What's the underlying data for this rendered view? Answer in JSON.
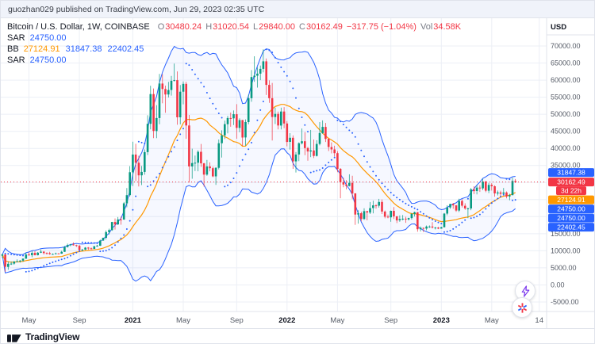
{
  "meta": {
    "publisher_line": "guozhan029 published on TradingView.com, Jun 29, 2023 02:35 UTC"
  },
  "legend": {
    "title": "Bitcoin / U.S. Dollar, 1W, COINBASE",
    "ohlc": [
      {
        "label": "O",
        "value": "30480.24"
      },
      {
        "label": "H",
        "value": "31020.54"
      },
      {
        "label": "L",
        "value": "29840.00"
      },
      {
        "label": "C",
        "value": "30162.49"
      }
    ],
    "change": "−317.75 (−1.04%)",
    "vol_label": "Vol",
    "vol_value": "34.58K",
    "indicators": [
      {
        "name": "SAR",
        "values": [
          {
            "text": "24750.00",
            "color": "#2962FF"
          }
        ]
      },
      {
        "name": "BB",
        "values": [
          {
            "text": "27124.91",
            "color": "#FF9800"
          },
          {
            "text": "31847.38",
            "color": "#2962FF"
          },
          {
            "text": "22402.45",
            "color": "#2962FF"
          }
        ]
      },
      {
        "name": "SAR",
        "values": [
          {
            "text": "24750.00",
            "color": "#2962FF"
          }
        ]
      }
    ]
  },
  "price_scale": {
    "currency": "USD",
    "max": 70000,
    "min": -5000,
    "step": 5000,
    "badges": [
      {
        "role": "bb-upper",
        "text": "31847.38",
        "price": 31847.38,
        "color": "#2962FF"
      },
      {
        "role": "last-price",
        "text": "30162.49",
        "price": 30162.49,
        "color": "#F23645"
      },
      {
        "role": "countdown",
        "text": "3d 22h",
        "price": null,
        "color": "#F23645"
      },
      {
        "role": "bb-basis",
        "text": "27124.91",
        "price": 27124.91,
        "color": "#FF9800"
      },
      {
        "role": "sar",
        "text": "24750.00",
        "price": 24750.0,
        "color": "#2962FF"
      },
      {
        "role": "sar-2",
        "text": "24750.00",
        "price": 24750.0,
        "color": "#2962FF"
      },
      {
        "role": "bb-lower",
        "text": "22402.45",
        "price": 22402.45,
        "color": "#2962FF"
      }
    ]
  },
  "time_axis": {
    "labels": [
      {
        "text": "May",
        "index": 9,
        "year": false
      },
      {
        "text": "Sep",
        "index": 26,
        "year": false
      },
      {
        "text": "2021",
        "index": 44,
        "year": true
      },
      {
        "text": "May",
        "index": 61,
        "year": false
      },
      {
        "text": "Sep",
        "index": 79,
        "year": false
      },
      {
        "text": "2022",
        "index": 96,
        "year": true
      },
      {
        "text": "May",
        "index": 113,
        "year": false
      },
      {
        "text": "Sep",
        "index": 131,
        "year": false
      },
      {
        "text": "2023",
        "index": 148,
        "year": true
      },
      {
        "text": "May",
        "index": 165,
        "year": false
      },
      {
        "text": "14",
        "index": 181,
        "year": false
      }
    ]
  },
  "footer": {
    "brand": "TradingView"
  },
  "colors": {
    "up": "#089981",
    "down": "#F23645",
    "bb_band": "#2962FF",
    "bb_fill": "rgba(41,98,255,0.045)",
    "bb_basis": "#FF9800",
    "sar": "#2962FF",
    "last_price": "#F23645",
    "grid": "#ECEFF6",
    "axis_border": "#E0E3EB"
  },
  "chart_data": {
    "type": "candlestick",
    "title": "Bitcoin / U.S. Dollar",
    "interval": "1W",
    "exchange": "COINBASE",
    "last_candle": {
      "open": 30480.24,
      "high": 31020.54,
      "low": 29840.0,
      "close": 30162.49,
      "change": -317.75,
      "change_pct": -1.04,
      "volume": "34.58K"
    },
    "countdown": "3d 22h",
    "ylim": [
      -5000,
      70000
    ],
    "x_slots": 184,
    "indicators": {
      "bb": {
        "length": 20,
        "stdev": 2,
        "basis": 27124.91,
        "upper": 31847.38,
        "lower": 22402.45
      },
      "sar": {
        "start": 0.02,
        "increment": 0.02,
        "max": 0.2,
        "value": 24750.0
      },
      "sar2": {
        "start": 0.02,
        "increment": 0.02,
        "max": 0.2,
        "value": 24750.0
      }
    },
    "candles": [
      [
        8550,
        9190,
        7900,
        8900
      ],
      [
        8900,
        9170,
        3850,
        5300
      ],
      [
        5300,
        6900,
        4450,
        6200
      ],
      [
        6200,
        6870,
        5870,
        6250
      ],
      [
        6250,
        6950,
        5900,
        6870
      ],
      [
        6870,
        7470,
        6740,
        6910
      ],
      [
        6910,
        7290,
        6570,
        7130
      ],
      [
        7130,
        7750,
        6770,
        7700
      ],
      [
        7700,
        9460,
        7620,
        8900
      ],
      [
        8900,
        9570,
        8520,
        8720
      ],
      [
        8720,
        9950,
        8120,
        9380
      ],
      [
        9380,
        9890,
        8650,
        8720
      ],
      [
        8720,
        9620,
        8630,
        9450
      ],
      [
        9450,
        10380,
        9330,
        9750
      ],
      [
        9750,
        9900,
        8900,
        9340
      ],
      [
        9340,
        9590,
        8910,
        9300
      ],
      [
        9300,
        9700,
        8830,
        9010
      ],
      [
        9010,
        9230,
        8940,
        9070
      ],
      [
        9070,
        9470,
        9020,
        9240
      ],
      [
        9240,
        9280,
        9050,
        9170
      ],
      [
        9170,
        9990,
        9110,
        9700
      ],
      [
        9700,
        11400,
        9660,
        11100
      ],
      [
        11100,
        12100,
        10960,
        11680
      ],
      [
        11680,
        12050,
        11300,
        11850
      ],
      [
        11850,
        12470,
        11500,
        11650
      ],
      [
        11650,
        11780,
        11140,
        11470
      ],
      [
        11470,
        11720,
        9900,
        10170
      ],
      [
        10170,
        10590,
        9830,
        10340
      ],
      [
        10340,
        11100,
        10220,
        10920
      ],
      [
        10920,
        11080,
        10310,
        10730
      ],
      [
        10730,
        10950,
        10380,
        10550
      ],
      [
        10550,
        11480,
        10500,
        11300
      ],
      [
        11300,
        11730,
        11160,
        11500
      ],
      [
        11500,
        13250,
        11420,
        13000
      ],
      [
        13000,
        13850,
        12880,
        13800
      ],
      [
        13800,
        15960,
        13290,
        15480
      ],
      [
        15480,
        16480,
        14810,
        16070
      ],
      [
        16070,
        18480,
        15860,
        18430
      ],
      [
        18430,
        19480,
        16230,
        17720
      ],
      [
        17720,
        19900,
        17540,
        19170
      ],
      [
        19170,
        19950,
        17650,
        19150
      ],
      [
        19150,
        24300,
        19050,
        23900
      ],
      [
        23900,
        28400,
        22750,
        26300
      ],
      [
        26300,
        34800,
        25850,
        33000
      ],
      [
        33000,
        41950,
        28950,
        38200
      ],
      [
        38200,
        41350,
        30400,
        35800
      ],
      [
        35800,
        37850,
        28850,
        32100
      ],
      [
        32100,
        34850,
        29250,
        33100
      ],
      [
        33100,
        39700,
        32300,
        38900
      ],
      [
        38900,
        49700,
        38050,
        47200
      ],
      [
        47200,
        58350,
        45570,
        55900
      ],
      [
        55900,
        57550,
        43000,
        45100
      ],
      [
        45100,
        52650,
        43000,
        48900
      ],
      [
        48900,
        61800,
        47070,
        59000
      ],
      [
        59000,
        61700,
        53220,
        57400
      ],
      [
        57400,
        58400,
        50430,
        55800
      ],
      [
        55800,
        59470,
        54900,
        57100
      ],
      [
        57100,
        61250,
        55470,
        59800
      ],
      [
        59800,
        64850,
        59600,
        60000
      ],
      [
        60000,
        62550,
        46930,
        49100
      ],
      [
        49100,
        58550,
        47040,
        56600
      ],
      [
        56600,
        59600,
        52900,
        58900
      ],
      [
        58900,
        59500,
        42800,
        46700
      ],
      [
        46700,
        49800,
        30000,
        34700
      ],
      [
        34700,
        39900,
        31100,
        35700
      ],
      [
        35700,
        37900,
        33350,
        35800
      ],
      [
        35800,
        39450,
        33300,
        39000
      ],
      [
        39000,
        41300,
        34600,
        35600
      ],
      [
        35600,
        35750,
        28800,
        32300
      ],
      [
        32300,
        36600,
        32000,
        34700
      ],
      [
        34700,
        35900,
        33300,
        34200
      ],
      [
        34200,
        34650,
        31550,
        31800
      ],
      [
        31800,
        34500,
        29300,
        34300
      ],
      [
        34300,
        42600,
        33850,
        41500
      ],
      [
        41500,
        45300,
        37300,
        43800
      ],
      [
        43800,
        48150,
        42750,
        47100
      ],
      [
        47100,
        49500,
        44400,
        48900
      ],
      [
        48900,
        50500,
        46350,
        48800
      ],
      [
        48800,
        51100,
        46850,
        50000
      ],
      [
        50000,
        52950,
        42830,
        46000
      ],
      [
        46000,
        48820,
        44720,
        48300
      ],
      [
        48300,
        48350,
        40750,
        43200
      ],
      [
        43200,
        48500,
        40790,
        47700
      ],
      [
        47700,
        55750,
        47050,
        54700
      ],
      [
        54700,
        62930,
        53650,
        60900
      ],
      [
        60900,
        66990,
        59510,
        61300
      ],
      [
        61300,
        63720,
        57820,
        61900
      ],
      [
        61900,
        64270,
        60000,
        63300
      ],
      [
        63300,
        69000,
        62280,
        65500
      ],
      [
        65500,
        66330,
        55640,
        58600
      ],
      [
        58600,
        59930,
        53320,
        54700
      ],
      [
        54700,
        59180,
        42330,
        49200
      ],
      [
        49200,
        51950,
        47130,
        50100
      ],
      [
        50100,
        50780,
        45580,
        46700
      ],
      [
        46700,
        51940,
        45560,
        50800
      ],
      [
        50800,
        52100,
        45900,
        47300
      ],
      [
        47300,
        47990,
        40610,
        41900
      ],
      [
        41900,
        44450,
        39660,
        43100
      ],
      [
        43100,
        43800,
        34000,
        36200
      ],
      [
        36200,
        38960,
        32950,
        38200
      ],
      [
        38200,
        41770,
        36250,
        41500
      ],
      [
        41500,
        45820,
        41130,
        42100
      ],
      [
        42100,
        44750,
        38000,
        40100
      ],
      [
        40100,
        40450,
        36370,
        39100
      ],
      [
        39100,
        45400,
        37450,
        39400
      ],
      [
        39400,
        42590,
        37160,
        37800
      ],
      [
        37800,
        42400,
        37600,
        41300
      ],
      [
        41300,
        47700,
        40890,
        44500
      ],
      [
        44500,
        48200,
        44270,
        46300
      ],
      [
        46300,
        47450,
        41870,
        42800
      ],
      [
        42800,
        42800,
        39200,
        40400
      ],
      [
        40400,
        41760,
        38540,
        39700
      ],
      [
        39700,
        40800,
        37580,
        38600
      ],
      [
        38600,
        39170,
        33000,
        34000
      ],
      [
        34000,
        34240,
        25400,
        30100
      ],
      [
        30100,
        31430,
        28600,
        29400
      ],
      [
        29400,
        30700,
        28000,
        29000
      ],
      [
        29000,
        32400,
        28850,
        29900
      ],
      [
        29900,
        31980,
        25100,
        26800
      ],
      [
        26800,
        26900,
        17600,
        20600
      ],
      [
        20600,
        21870,
        17960,
        21000
      ],
      [
        21000,
        21480,
        18620,
        19300
      ],
      [
        19300,
        22450,
        19050,
        21600
      ],
      [
        21600,
        21660,
        18910,
        21200
      ],
      [
        21200,
        24290,
        20770,
        22500
      ],
      [
        22500,
        24670,
        20970,
        23300
      ],
      [
        23300,
        23650,
        22350,
        23200
      ],
      [
        23200,
        25210,
        22660,
        24300
      ],
      [
        24300,
        25050,
        20780,
        21500
      ],
      [
        21500,
        21800,
        19510,
        20000
      ],
      [
        20000,
        20580,
        19520,
        19800
      ],
      [
        19800,
        21800,
        18510,
        21700
      ],
      [
        21700,
        22800,
        19320,
        20100
      ],
      [
        20100,
        20180,
        18125,
        18900
      ],
      [
        18900,
        20380,
        18470,
        19300
      ],
      [
        19300,
        20475,
        18920,
        19400
      ],
      [
        19400,
        19950,
        18190,
        19200
      ],
      [
        19200,
        19700,
        18900,
        19600
      ],
      [
        19600,
        21080,
        19160,
        20800
      ],
      [
        20800,
        21480,
        20050,
        21300
      ],
      [
        21300,
        21350,
        15590,
        16300
      ],
      [
        16300,
        17130,
        15670,
        16700
      ],
      [
        16700,
        16800,
        15480,
        16500
      ],
      [
        16500,
        17400,
        16000,
        17100
      ],
      [
        17100,
        17440,
        16700,
        17100
      ],
      [
        17100,
        18390,
        16530,
        16800
      ],
      [
        16800,
        17000,
        16280,
        16800
      ],
      [
        16800,
        16980,
        16350,
        16500
      ],
      [
        16500,
        17040,
        16480,
        16900
      ],
      [
        16900,
        21050,
        16850,
        20900
      ],
      [
        20900,
        23350,
        20400,
        22700
      ],
      [
        22700,
        23800,
        22290,
        23700
      ],
      [
        23700,
        23970,
        22300,
        23300
      ],
      [
        23300,
        23430,
        21430,
        21800
      ],
      [
        21800,
        25250,
        21350,
        24600
      ],
      [
        24600,
        25100,
        22700,
        23200
      ],
      [
        23200,
        23900,
        22000,
        22400
      ],
      [
        22400,
        22650,
        19550,
        22400
      ],
      [
        22400,
        28390,
        21900,
        28000
      ],
      [
        28000,
        28900,
        26600,
        27500
      ],
      [
        27500,
        29150,
        26500,
        28500
      ],
      [
        28500,
        29180,
        27250,
        28300
      ],
      [
        28300,
        31050,
        27800,
        30300
      ],
      [
        30300,
        30480,
        27150,
        27600
      ],
      [
        27600,
        29900,
        26900,
        29300
      ],
      [
        29300,
        29800,
        27650,
        28900
      ],
      [
        28900,
        29150,
        25850,
        26800
      ],
      [
        26800,
        27650,
        26200,
        27100
      ],
      [
        27100,
        27600,
        25900,
        26700
      ],
      [
        26700,
        28400,
        26500,
        27100
      ],
      [
        27100,
        27400,
        25350,
        25900
      ],
      [
        25900,
        26700,
        24800,
        26300
      ],
      [
        26300,
        31400,
        26250,
        30480
      ],
      [
        30480.24,
        31020.54,
        29840.0,
        30162.49
      ]
    ]
  }
}
